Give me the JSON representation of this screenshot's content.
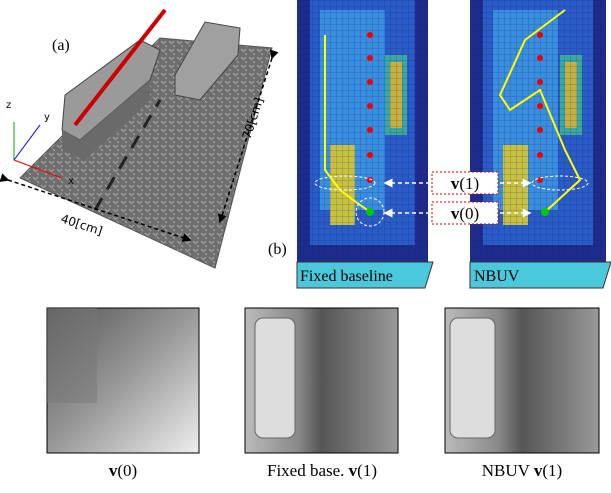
{
  "panel_a": {
    "label": "(a)",
    "axes": [
      "z",
      "y",
      "x"
    ],
    "dims": [
      "70[cm]",
      "40[cm]"
    ]
  },
  "panel_b": {
    "label": "(b)",
    "tabs": [
      "Fixed baseline",
      "NBUV"
    ],
    "vectors": [
      {
        "symbol": "v",
        "index": "(1)"
      },
      {
        "symbol": "v",
        "index": "(0)"
      }
    ]
  },
  "captions": [
    {
      "prefix": "",
      "symbol": "v",
      "index": "(0)"
    },
    {
      "prefix": "Fixed base.",
      "symbol": "v",
      "index": "(1)"
    },
    {
      "prefix": "NBUV",
      "symbol": "v",
      "index": "(1)"
    }
  ]
}
